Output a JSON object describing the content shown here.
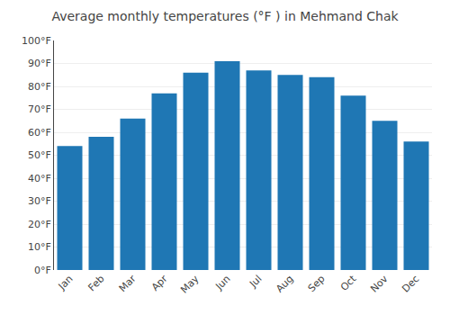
{
  "chart_data": {
    "type": "bar",
    "title": "Average monthly temperatures (°F ) in Mehmand Chak",
    "categories": [
      "Jan",
      "Feb",
      "Mar",
      "Apr",
      "May",
      "Jun",
      "Jul",
      "Aug",
      "Sep",
      "Oct",
      "Nov",
      "Dec"
    ],
    "values": [
      54,
      58,
      66,
      77,
      86,
      91,
      87,
      85,
      84,
      76,
      65,
      56
    ],
    "ylim": [
      0,
      100
    ],
    "yticks": [
      {
        "value": 0,
        "label": "0°F"
      },
      {
        "value": 10,
        "label": "10°F"
      },
      {
        "value": 20,
        "label": "20°F"
      },
      {
        "value": 30,
        "label": "30°F"
      },
      {
        "value": 40,
        "label": "40°F"
      },
      {
        "value": 50,
        "label": "50°F"
      },
      {
        "value": 60,
        "label": "60°F"
      },
      {
        "value": 70,
        "label": "70°F"
      },
      {
        "value": 80,
        "label": "80°F"
      },
      {
        "value": 90,
        "label": "90°F"
      },
      {
        "value": 100,
        "label": "100°F"
      }
    ],
    "grid": true
  }
}
